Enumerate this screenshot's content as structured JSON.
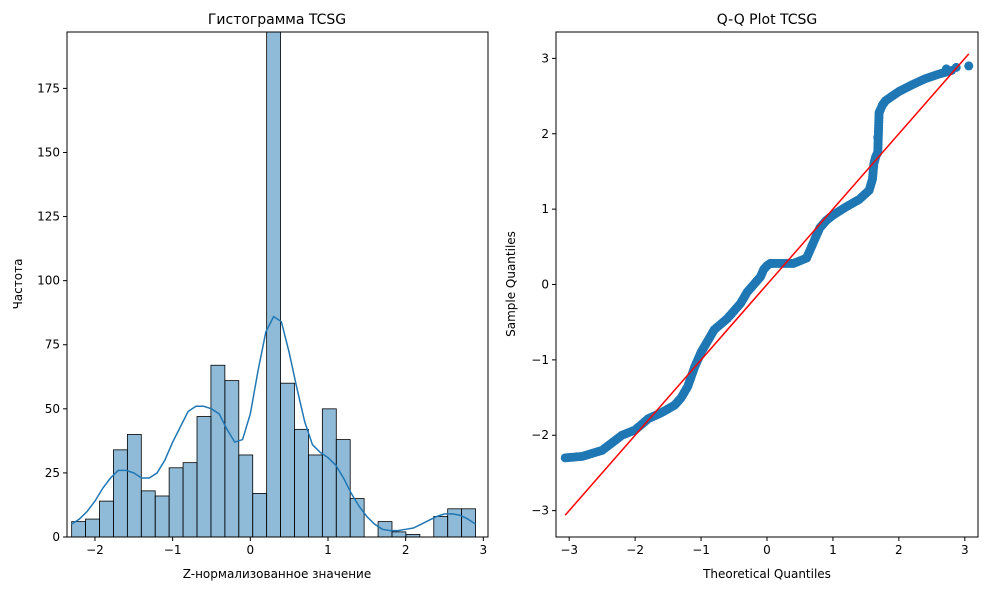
{
  "chart_data": [
    {
      "type": "bar",
      "title": "Гистограмма TCSG",
      "xlabel": "Z-нормализованное значение",
      "ylabel": "Частота",
      "xlim": [
        -2.36,
        3.06
      ],
      "ylim": [
        0,
        197
      ],
      "xticks": [
        -2,
        -1,
        0,
        1,
        2,
        3
      ],
      "xtick_labels": [
        "−2",
        "−1",
        "0",
        "1",
        "2",
        "3"
      ],
      "yticks": [
        0,
        25,
        50,
        75,
        100,
        125,
        150,
        175
      ],
      "ytick_labels": [
        "0",
        "25",
        "50",
        "75",
        "100",
        "125",
        "150",
        "175"
      ],
      "bin_start": -2.3,
      "bin_width": 0.1793,
      "values": [
        6,
        7,
        14,
        34,
        40,
        18,
        16,
        27,
        29,
        47,
        67,
        61,
        32,
        17,
        197,
        60,
        42,
        32,
        50,
        38,
        15,
        0,
        6,
        2,
        1,
        0,
        8,
        11,
        11
      ],
      "kde": {
        "x": [
          -2.3,
          -2.2,
          -2.1,
          -2.0,
          -1.9,
          -1.8,
          -1.7,
          -1.6,
          -1.5,
          -1.4,
          -1.3,
          -1.2,
          -1.1,
          -1.0,
          -0.9,
          -0.8,
          -0.7,
          -0.6,
          -0.5,
          -0.4,
          -0.3,
          -0.2,
          -0.1,
          0.0,
          0.1,
          0.2,
          0.3,
          0.4,
          0.5,
          0.6,
          0.7,
          0.8,
          0.9,
          1.0,
          1.1,
          1.2,
          1.3,
          1.4,
          1.5,
          1.6,
          1.7,
          1.8,
          1.9,
          2.0,
          2.1,
          2.2,
          2.3,
          2.4,
          2.5,
          2.6,
          2.7,
          2.8,
          2.9
        ],
        "y": [
          5,
          7,
          10,
          14,
          19,
          23,
          26,
          26,
          25,
          23,
          23,
          25,
          30,
          37,
          43,
          49,
          51,
          51,
          50,
          48,
          42,
          37,
          38,
          48,
          65,
          80,
          86,
          84,
          72,
          58,
          45,
          36,
          33,
          31,
          28,
          23,
          17,
          12,
          8,
          5,
          3,
          2.5,
          2.5,
          3,
          3.5,
          5,
          6.5,
          8,
          9,
          9,
          8.5,
          7,
          5
        ]
      }
    },
    {
      "type": "scatter",
      "title": "Q-Q Plot TCSG",
      "xlabel": "Theoretical Quantiles",
      "ylabel": "Sample Quantiles",
      "xlim": [
        -3.2,
        3.2
      ],
      "ylim": [
        -3.35,
        3.35
      ],
      "xticks": [
        -3,
        -2,
        -1,
        0,
        1,
        2,
        3
      ],
      "xtick_labels": [
        "−3",
        "−2",
        "−1",
        "0",
        "1",
        "2",
        "3"
      ],
      "yticks": [
        -3,
        -2,
        -1,
        0,
        1,
        2,
        3
      ],
      "ytick_labels": [
        "−3",
        "−2",
        "−1",
        "0",
        "1",
        "2",
        "3"
      ],
      "curve": {
        "x": [
          -3.06,
          -2.8,
          -2.5,
          -2.2,
          -2.0,
          -1.8,
          -1.6,
          -1.4,
          -1.3,
          -1.2,
          -1.1,
          -1.0,
          -0.9,
          -0.8,
          -0.6,
          -0.4,
          -0.3,
          -0.2,
          -0.1,
          -0.05,
          0.0,
          0.05,
          0.1,
          0.2,
          0.4,
          0.6,
          0.7,
          0.8,
          0.9,
          1.0,
          1.2,
          1.4,
          1.55,
          1.6,
          1.62,
          1.65,
          1.68,
          1.7,
          1.72,
          1.75,
          1.8,
          2.0,
          2.2,
          2.4,
          2.6,
          2.8
        ],
        "y": [
          -2.3,
          -2.28,
          -2.2,
          -2.0,
          -1.93,
          -1.78,
          -1.7,
          -1.6,
          -1.5,
          -1.35,
          -1.1,
          -0.9,
          -0.75,
          -0.6,
          -0.45,
          -0.25,
          -0.1,
          0.0,
          0.1,
          0.2,
          0.25,
          0.28,
          0.28,
          0.28,
          0.28,
          0.35,
          0.55,
          0.75,
          0.85,
          0.92,
          1.03,
          1.13,
          1.25,
          1.4,
          1.6,
          1.7,
          1.75,
          2.28,
          2.32,
          2.38,
          2.44,
          2.56,
          2.65,
          2.73,
          2.79,
          2.84
        ]
      },
      "outliers": [
        {
          "x": 1.68,
          "y": 1.95
        },
        {
          "x": 2.72,
          "y": 2.86
        },
        {
          "x": 2.87,
          "y": 2.88
        },
        {
          "x": 3.06,
          "y": 2.9
        }
      ],
      "reference_line": {
        "x": [
          -3.06,
          3.06
        ],
        "y": [
          -3.06,
          3.06
        ]
      }
    }
  ]
}
